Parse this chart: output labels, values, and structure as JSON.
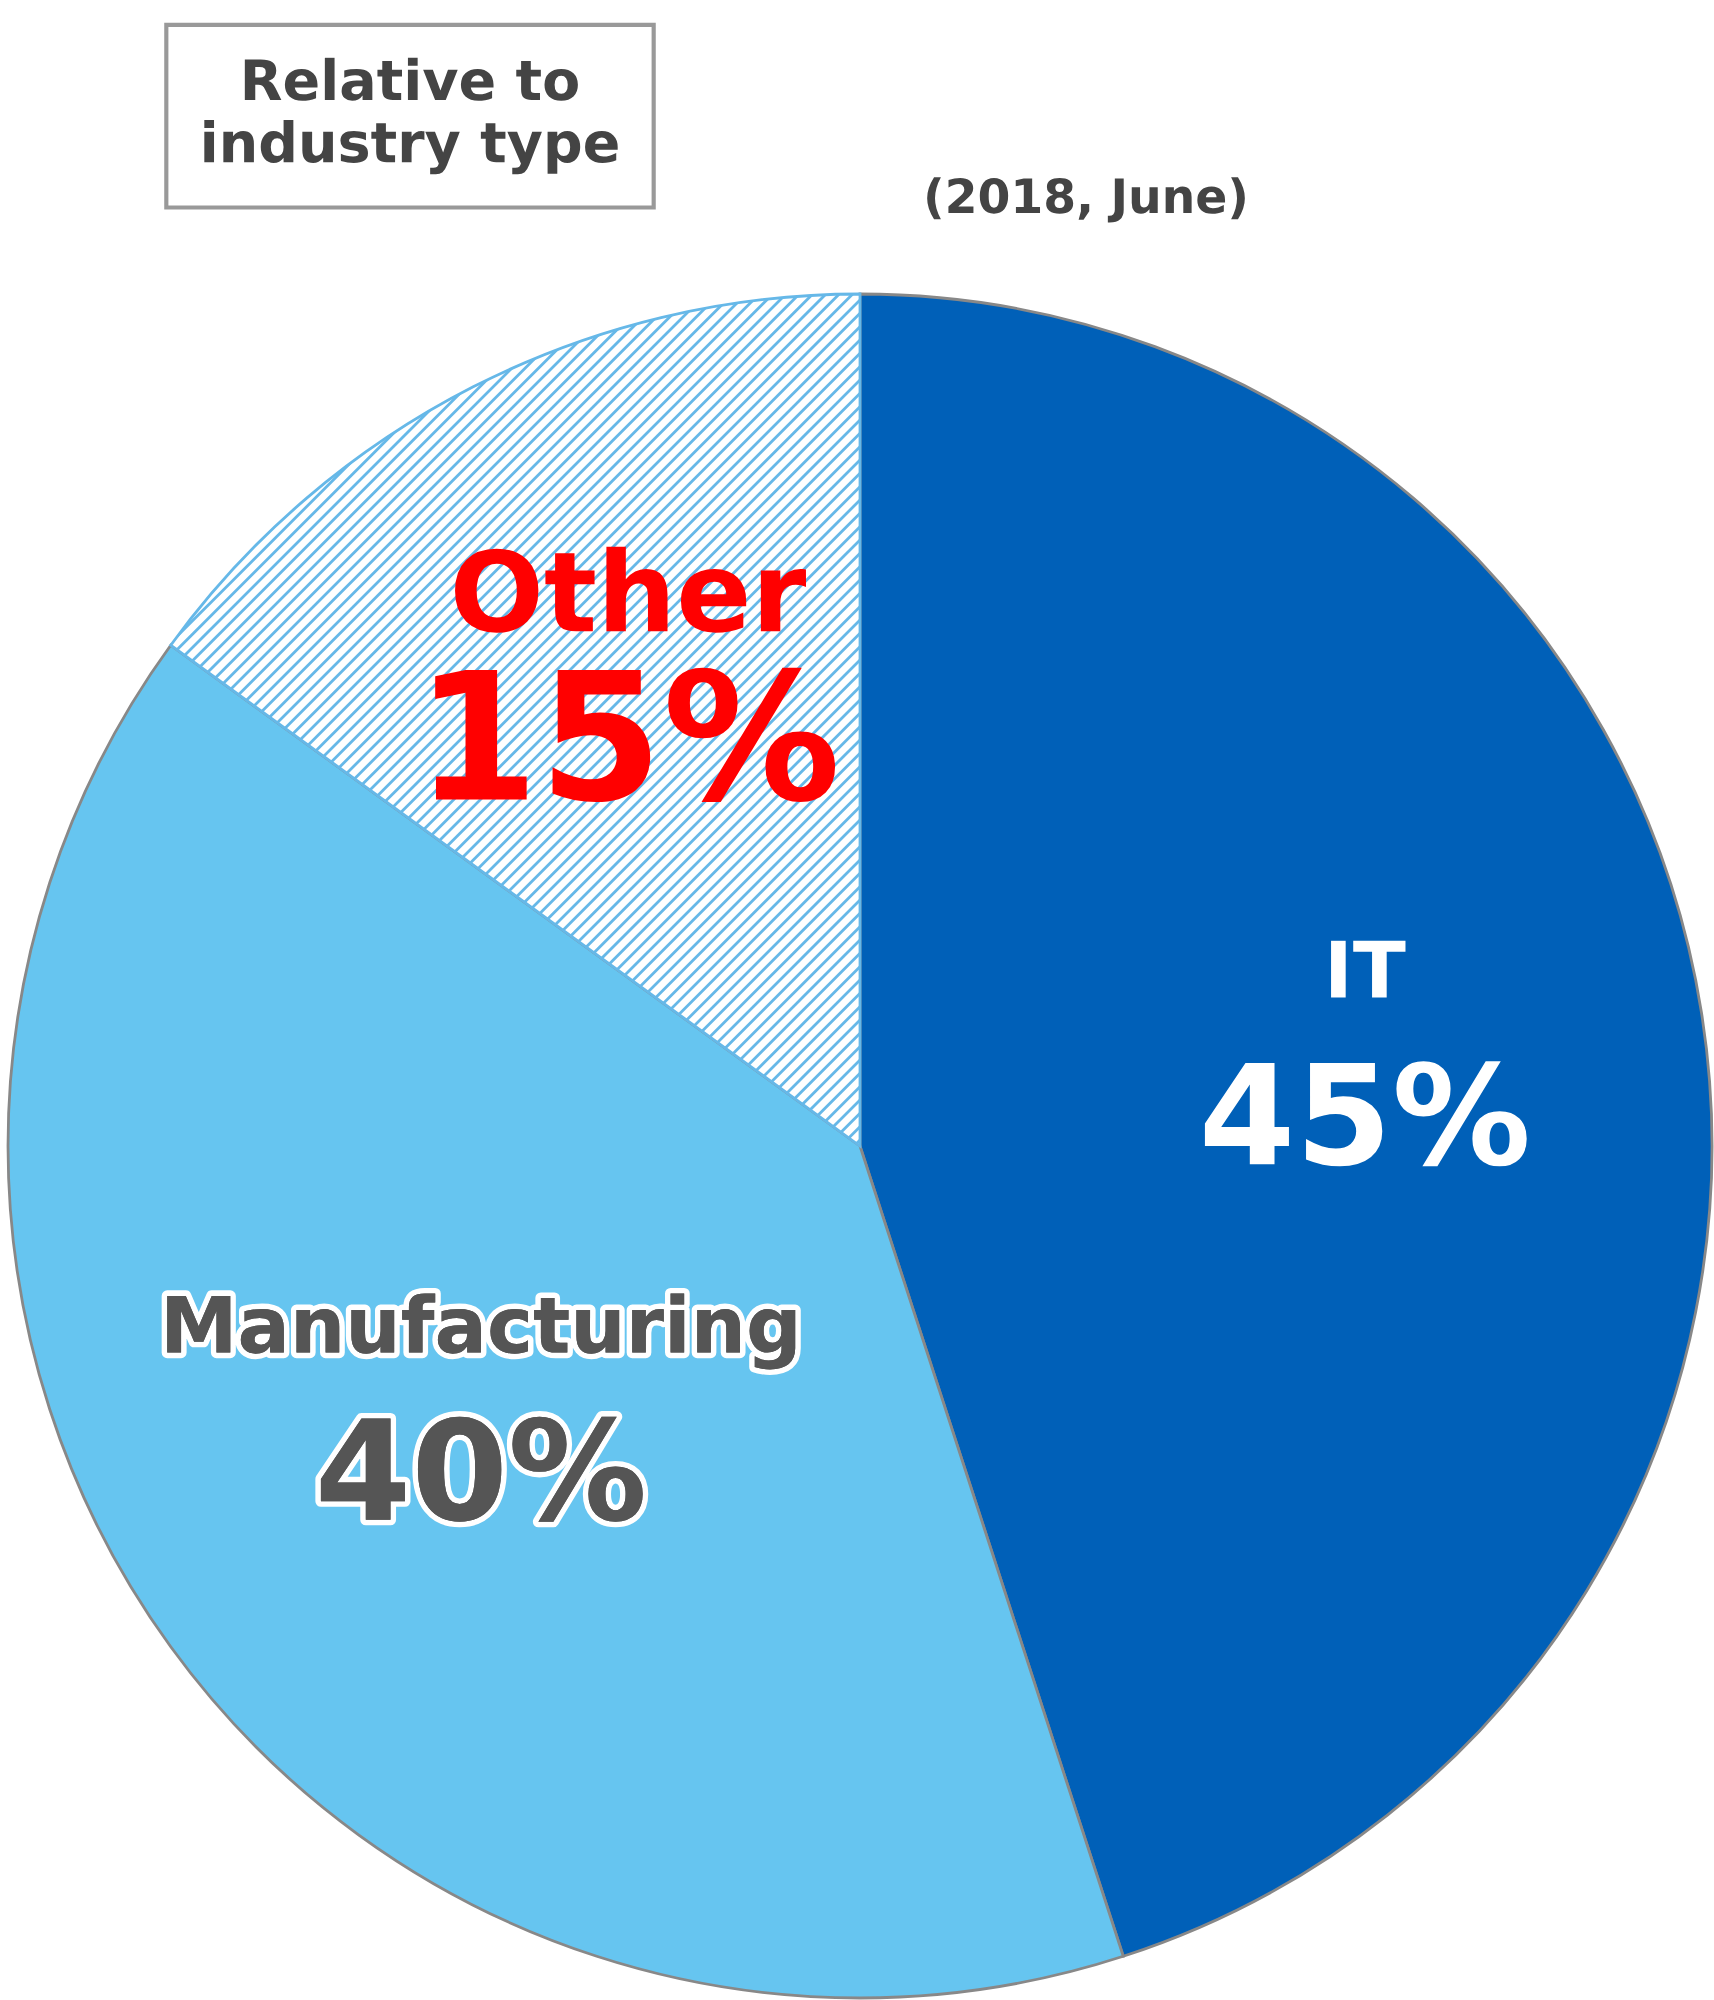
{
  "chart_data": {
    "type": "pie",
    "title": "Relative to\nindustry type",
    "subtitle": "(2018, June)",
    "categories": [
      "IT",
      "Manufacturing",
      "Other"
    ],
    "values": [
      45,
      40,
      15
    ],
    "colors": [
      "#0060b8",
      "#66c5f0",
      "#66b8e8"
    ],
    "value_labels": [
      "45%",
      "40%",
      "15%"
    ],
    "legend": false
  }
}
